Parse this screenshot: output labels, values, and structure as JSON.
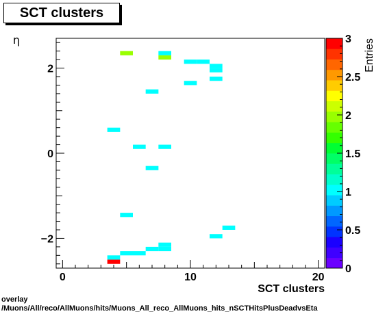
{
  "title": "SCT clusters",
  "chart_data": {
    "type": "heatmap",
    "title": "SCT clusters",
    "xlabel": "SCT clusters",
    "ylabel": "η",
    "zlabel": "Entries",
    "xlim": [
      -0.5,
      20.5
    ],
    "ylim": [
      -2.7,
      2.7
    ],
    "zlim": [
      0,
      3
    ],
    "x_ticks": [
      0,
      10,
      20
    ],
    "y_ticks": [
      -2,
      0,
      2
    ],
    "z_ticks": [
      0,
      0.5,
      1,
      1.5,
      2,
      2.5,
      3
    ],
    "y_tick_labels": [
      "−2",
      "0",
      "2"
    ],
    "x_tick_labels": [
      "0",
      "10",
      "20"
    ],
    "z_tick_labels": [
      "0",
      "0.5",
      "1",
      "1.5",
      "2",
      "2.5",
      "3"
    ],
    "bin_width_x": 1,
    "bin_height_y": 0.1,
    "cells": [
      {
        "x": 5,
        "y": 2.35,
        "value": 2
      },
      {
        "x": 8,
        "y": 2.35,
        "value": 1
      },
      {
        "x": 8,
        "y": 2.25,
        "value": 2
      },
      {
        "x": 10,
        "y": 2.15,
        "value": 1
      },
      {
        "x": 11,
        "y": 2.15,
        "value": 1
      },
      {
        "x": 12,
        "y": 2.05,
        "value": 1
      },
      {
        "x": 12,
        "y": 1.95,
        "value": 1
      },
      {
        "x": 12,
        "y": 1.75,
        "value": 1
      },
      {
        "x": 10,
        "y": 1.65,
        "value": 1
      },
      {
        "x": 7,
        "y": 1.45,
        "value": 1
      },
      {
        "x": 4,
        "y": 0.55,
        "value": 1
      },
      {
        "x": 6,
        "y": 0.15,
        "value": 1
      },
      {
        "x": 8,
        "y": 0.15,
        "value": 1
      },
      {
        "x": 7,
        "y": -0.35,
        "value": 1
      },
      {
        "x": 5,
        "y": -1.45,
        "value": 1
      },
      {
        "x": 13,
        "y": -1.75,
        "value": 1
      },
      {
        "x": 12,
        "y": -1.95,
        "value": 1
      },
      {
        "x": 8,
        "y": -2.15,
        "value": 1
      },
      {
        "x": 7,
        "y": -2.25,
        "value": 1
      },
      {
        "x": 8,
        "y": -2.25,
        "value": 1
      },
      {
        "x": 5,
        "y": -2.35,
        "value": 1
      },
      {
        "x": 6,
        "y": -2.35,
        "value": 1
      },
      {
        "x": 4,
        "y": -2.45,
        "value": 1
      },
      {
        "x": 4,
        "y": -2.55,
        "value": 3
      }
    ],
    "palette": [
      "#6b00ff",
      "#3f00ff",
      "#1a00ff",
      "#0033ff",
      "#0066ff",
      "#0099ff",
      "#00ccff",
      "#00ffff",
      "#00ffcc",
      "#00ff99",
      "#00ff66",
      "#00ff33",
      "#33ff00",
      "#66ff00",
      "#99ff00",
      "#ccff00",
      "#ffff00",
      "#ffcc00",
      "#ff9900",
      "#ff6600",
      "#ff3300",
      "#ff0000"
    ]
  },
  "caption": {
    "line1": "overlay",
    "line2": "/Muons/All/reco/AllMuons/hits/Muons_All_reco_AllMuons_hits_nSCTHitsPlusDeadvsEta"
  }
}
